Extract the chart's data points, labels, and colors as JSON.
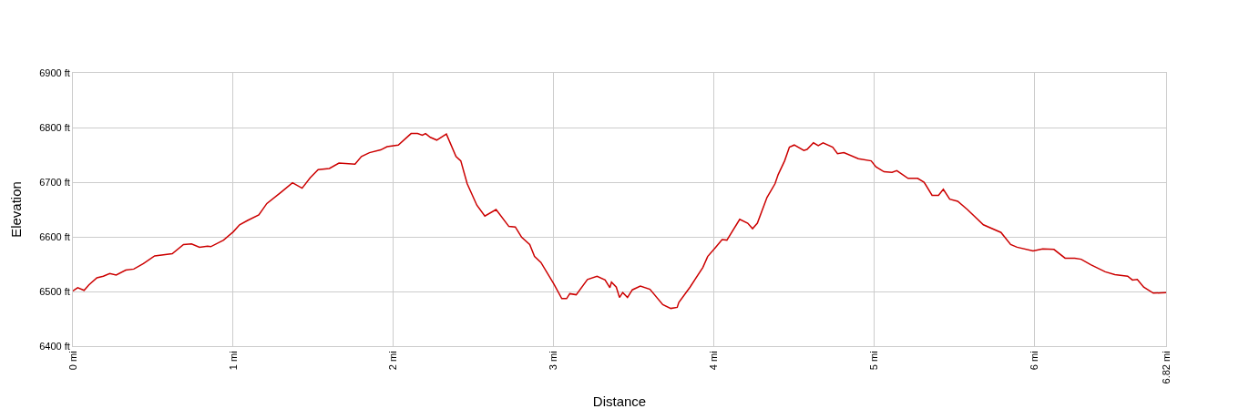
{
  "chart_data": {
    "type": "line",
    "xlabel": "Distance",
    "ylabel": "Elevation",
    "x": [
      0,
      0.03,
      0.07,
      0.1,
      0.15,
      0.19,
      0.23,
      0.27,
      0.33,
      0.38,
      0.44,
      0.51,
      0.62,
      0.69,
      0.74,
      0.79,
      0.84,
      0.86,
      0.94,
      1.0,
      1.04,
      1.09,
      1.16,
      1.21,
      1.3,
      1.37,
      1.43,
      1.48,
      1.53,
      1.6,
      1.66,
      1.76,
      1.8,
      1.85,
      1.92,
      1.96,
      2.03,
      2.11,
      2.15,
      2.18,
      2.2,
      2.23,
      2.27,
      2.33,
      2.39,
      2.42,
      2.46,
      2.52,
      2.57,
      2.64,
      2.72,
      2.76,
      2.8,
      2.85,
      2.88,
      2.92,
      3.0,
      3.05,
      3.08,
      3.1,
      3.14,
      3.21,
      3.27,
      3.32,
      3.35,
      3.36,
      3.39,
      3.41,
      3.43,
      3.46,
      3.49,
      3.54,
      3.6,
      3.68,
      3.73,
      3.77,
      3.78,
      3.85,
      3.93,
      3.96,
      4.01,
      4.05,
      4.08,
      4.16,
      4.21,
      4.24,
      4.27,
      4.33,
      4.38,
      4.4,
      4.44,
      4.47,
      4.5,
      4.56,
      4.58,
      4.62,
      4.65,
      4.68,
      4.74,
      4.77,
      4.81,
      4.9,
      4.98,
      5.01,
      5.06,
      5.11,
      5.14,
      5.21,
      5.27,
      5.31,
      5.36,
      5.4,
      5.43,
      5.47,
      5.52,
      5.58,
      5.68,
      5.79,
      5.85,
      5.89,
      5.99,
      6.05,
      6.12,
      6.19,
      6.25,
      6.29,
      6.35,
      6.44,
      6.5,
      6.58,
      6.61,
      6.64,
      6.68,
      6.74,
      6.82
    ],
    "series": [
      {
        "color": "#cc0000",
        "values": [
          6501,
          6507,
          6502,
          6512,
          6525,
          6528,
          6533,
          6530,
          6539,
          6541,
          6551,
          6565,
          6569,
          6586,
          6587,
          6581,
          6583,
          6582,
          6594,
          6609,
          6622,
          6630,
          6640,
          6661,
          6682,
          6699,
          6689,
          6708,
          6723,
          6725,
          6735,
          6733,
          6747,
          6754,
          6759,
          6765,
          6768,
          6789,
          6789,
          6786,
          6789,
          6782,
          6777,
          6788,
          6747,
          6739,
          6697,
          6658,
          6638,
          6650,
          6619,
          6618,
          6599,
          6586,
          6564,
          6553,
          6514,
          6487,
          6487,
          6496,
          6494,
          6522,
          6528,
          6521,
          6507,
          6517,
          6508,
          6489,
          6498,
          6489,
          6503,
          6510,
          6504,
          6476,
          6469,
          6471,
          6480,
          6508,
          6544,
          6564,
          6581,
          6595,
          6594,
          6632,
          6625,
          6615,
          6625,
          6672,
          6697,
          6714,
          6739,
          6764,
          6768,
          6758,
          6760,
          6772,
          6767,
          6772,
          6764,
          6752,
          6754,
          6743,
          6739,
          6728,
          6719,
          6718,
          6721,
          6707,
          6707,
          6700,
          6676,
          6676,
          6687,
          6669,
          6665,
          6650,
          6622,
          6608,
          6586,
          6581,
          6574,
          6578,
          6577,
          6561,
          6561,
          6559,
          6549,
          6536,
          6531,
          6528,
          6521,
          6522,
          6508,
          6497,
          6498
        ]
      }
    ],
    "xlim": [
      0,
      6.82
    ],
    "xticks": [
      {
        "value": 0,
        "label": "0 mi"
      },
      {
        "value": 1,
        "label": "1 mi"
      },
      {
        "value": 2,
        "label": "2 mi"
      },
      {
        "value": 3,
        "label": "3 mi"
      },
      {
        "value": 4,
        "label": "4 mi"
      },
      {
        "value": 5,
        "label": "5 mi"
      },
      {
        "value": 6,
        "label": "6 mi"
      },
      {
        "value": 6.82,
        "label": "6.82 mi"
      }
    ],
    "ylim": [
      6400,
      6900
    ],
    "yticks": [
      {
        "value": 6400,
        "label": "6400 ft"
      },
      {
        "value": 6500,
        "label": "6500 ft"
      },
      {
        "value": 6600,
        "label": "6600 ft"
      },
      {
        "value": 6700,
        "label": "6700 ft"
      },
      {
        "value": 6800,
        "label": "6800 ft"
      },
      {
        "value": 6900,
        "label": "6900 ft"
      }
    ],
    "grid": true,
    "marker": "none",
    "line_style": "solid"
  }
}
